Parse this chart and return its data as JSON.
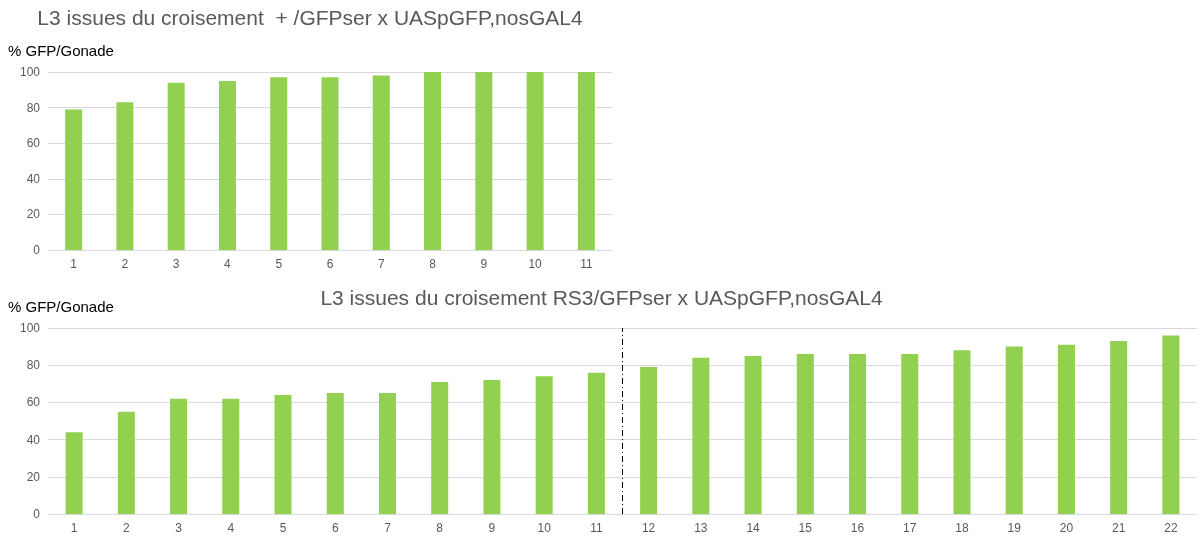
{
  "chart_data": [
    {
      "type": "bar",
      "title": "L3 issues du croisement  + /GFPser x UASpGFP,nosGAL4",
      "ylabel": "% GFP/Gonade",
      "x": [
        1,
        2,
        3,
        4,
        5,
        6,
        7,
        8,
        9,
        10,
        11
      ],
      "values": [
        79,
        83,
        94,
        95,
        97,
        97,
        98,
        100,
        100,
        100,
        100
      ],
      "color": "#92d050",
      "xlim": [
        0.5,
        11.5
      ],
      "xticks": [
        1,
        2,
        3,
        4,
        5,
        6,
        7,
        8,
        9,
        10,
        11
      ],
      "ylim": [
        0,
        100
      ],
      "yticks": [
        0,
        20,
        40,
        60,
        80,
        100
      ],
      "grid": "y"
    },
    {
      "type": "bar",
      "title": "L3 issues du croisement RS3/GFPser x UASpGFP,nosGAL4",
      "ylabel": "% GFP/Gonade",
      "x": [
        1,
        2,
        3,
        4,
        5,
        6,
        7,
        8,
        9,
        10,
        11,
        12,
        13,
        14,
        15,
        16,
        17,
        18,
        19,
        20,
        21,
        22
      ],
      "values": [
        44,
        55,
        62,
        62,
        64,
        65,
        65,
        71,
        72,
        74,
        76,
        79,
        84,
        85,
        86,
        86,
        86,
        88,
        90,
        91,
        93,
        96
      ],
      "color": "#92d050",
      "xlim": [
        0.5,
        22.5
      ],
      "xticks": [
        1,
        2,
        3,
        4,
        5,
        6,
        7,
        8,
        9,
        10,
        11,
        12,
        13,
        14,
        15,
        16,
        17,
        18,
        19,
        20,
        21,
        22
      ],
      "ylim": [
        0,
        100
      ],
      "yticks": [
        0,
        20,
        40,
        60,
        80,
        100
      ],
      "grid": "y",
      "ref_lines": [
        {
          "axis": "x",
          "value": 11.5,
          "color": "#000000",
          "line_style": "dashed"
        }
      ]
    }
  ]
}
